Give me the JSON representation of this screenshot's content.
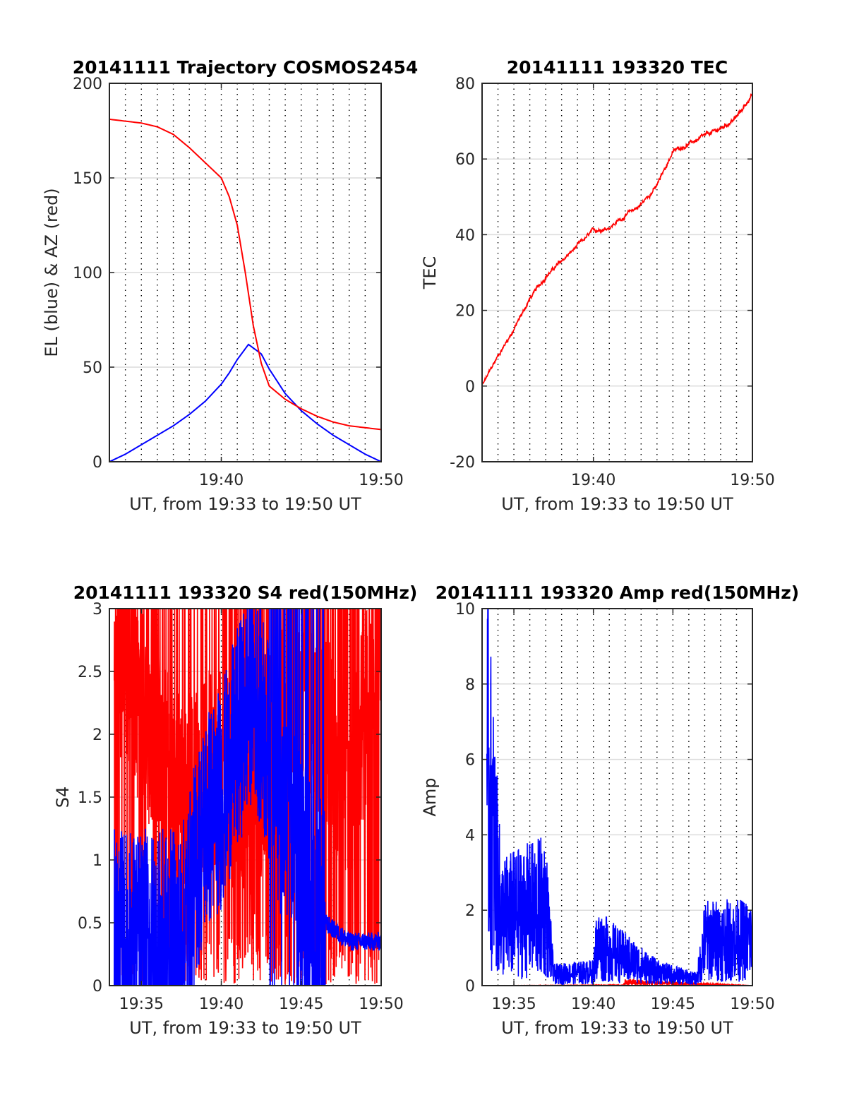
{
  "colors": {
    "el": "#0000ff",
    "az": "#ff0000",
    "tec": "#ff0000",
    "red": "#ff0000",
    "blue": "#0000ff",
    "grid": "#dcdcdc",
    "axis": "#262626"
  },
  "chart_data": [
    {
      "id": "traj",
      "type": "line",
      "title": "20141111 Trajectory COSMOS2454",
      "xlabel": "UT, from 19:33 to 19:50 UT",
      "ylabel": "EL (blue) & AZ (red)",
      "xlim": [
        "19:33",
        "19:50"
      ],
      "xticks": [
        "19:40",
        "19:50"
      ],
      "ylim": [
        0,
        200
      ],
      "yticks": [
        "0",
        "50",
        "100",
        "150",
        "200"
      ],
      "grid": "horizontal major + dotted minute lines",
      "series": [
        {
          "color": "#0000ff",
          "x": [
            "19:33",
            "19:34",
            "19:35",
            "19:36",
            "19:37",
            "19:38",
            "19:39",
            "19:40",
            "19:40.5",
            "19:41",
            "19:41.7",
            "19:42.5",
            "19:43",
            "19:44",
            "19:45",
            "19:46",
            "19:47",
            "19:48",
            "19:49",
            "19:50"
          ],
          "values": [
            0,
            4,
            9,
            14,
            19,
            25,
            32,
            41,
            47,
            54,
            62,
            57,
            49,
            36,
            27,
            20,
            14,
            9,
            4,
            0
          ]
        },
        {
          "color": "#ff0000",
          "x": [
            "19:33",
            "19:34",
            "19:35",
            "19:36",
            "19:37",
            "19:38",
            "19:39",
            "19:40",
            "19:40.5",
            "19:41",
            "19:41.5",
            "19:42",
            "19:42.5",
            "19:43",
            "19:44",
            "19:45",
            "19:46",
            "19:47",
            "19:48",
            "19:49",
            "19:50"
          ],
          "values": [
            181,
            180,
            179,
            177,
            173,
            166,
            158,
            150,
            140,
            125,
            100,
            72,
            52,
            40,
            33,
            28,
            24,
            21,
            19,
            18,
            17
          ]
        }
      ]
    },
    {
      "id": "tec",
      "type": "line",
      "title": "20141111 193320 TEC",
      "xlabel": "UT, from 19:33 to 19:50 UT",
      "ylabel": "TEC",
      "xlim": [
        "19:33",
        "19:50"
      ],
      "xticks": [
        "19:40",
        "19:50"
      ],
      "ylim": [
        -20,
        80
      ],
      "yticks": [
        "-20",
        "0",
        "20",
        "40",
        "60",
        "80"
      ],
      "series": [
        {
          "color": "#ff0000",
          "x": [
            "19:33",
            "19:34",
            "19:35",
            "19:36",
            "19:37",
            "19:38",
            "19:39",
            "19:40",
            "19:41",
            "19:42",
            "19:43",
            "19:44",
            "19:45",
            "19:46",
            "19:47",
            "19:48",
            "19:49",
            "19:50"
          ],
          "values": [
            0,
            8,
            15,
            23,
            29,
            33,
            37,
            41,
            42,
            45,
            48,
            53,
            62,
            64,
            66,
            68,
            71,
            77
          ]
        }
      ]
    },
    {
      "id": "s4",
      "type": "line",
      "title": "20141111 193320 S4 red(150MHz)",
      "xlabel": "UT, from 19:33 to 19:50 UT",
      "ylabel": "S4",
      "xlim": [
        "19:33",
        "19:50"
      ],
      "xticks": [
        "19:35",
        "19:40",
        "19:45",
        "19:50"
      ],
      "ylim": [
        0,
        3
      ],
      "yticks": [
        "0",
        "0.5",
        "1",
        "1.5",
        "2",
        "2.5",
        "3"
      ],
      "series": [
        {
          "color": "#ff0000",
          "x": [
            "19:33",
            "19:37.5",
            "19:40",
            "19:42",
            "19:44",
            "19:46",
            "19:48",
            "19:50"
          ],
          "values": [
            2.8,
            1.5,
            1.8,
            1.2,
            2.5,
            2.2,
            1.5,
            2.9
          ]
        },
        {
          "color": "#0000ff",
          "x": [
            "19:33",
            "19:37.5",
            "19:39",
            "19:40",
            "19:42",
            "19:44",
            "19:46.5",
            "19:48",
            "19:50"
          ],
          "values": [
            0.35,
            0.35,
            1.3,
            1.5,
            2.4,
            1.3,
            0.5,
            0.35,
            0.35
          ]
        }
      ]
    },
    {
      "id": "amp",
      "type": "line",
      "title": "20141111 193320 Amp red(150MHz)",
      "xlabel": "UT, from 19:33 to 19:50 UT",
      "ylabel": "Amp",
      "xlim": [
        "19:33",
        "19:50"
      ],
      "xticks": [
        "19:35",
        "19:40",
        "19:45",
        "19:50"
      ],
      "ylim": [
        0,
        10
      ],
      "yticks": [
        "0",
        "2",
        "4",
        "6",
        "8",
        "10"
      ],
      "series": [
        {
          "color": "#ff0000",
          "x": [
            "19:33",
            "19:41.9",
            "19:42",
            "19:50"
          ],
          "values": [
            0,
            0.1,
            0.9,
            0
          ]
        },
        {
          "color": "#0000ff",
          "x": [
            "19:33",
            "19:33.3",
            "19:34.2",
            "19:37",
            "19:37.5",
            "19:40",
            "19:40.2",
            "19:44",
            "19:46.5",
            "19:47",
            "19:50"
          ],
          "values": [
            2.0,
            9.6,
            3.0,
            3.5,
            0.5,
            0.6,
            1.8,
            0.6,
            0.3,
            2.0,
            2.0
          ]
        }
      ]
    }
  ]
}
